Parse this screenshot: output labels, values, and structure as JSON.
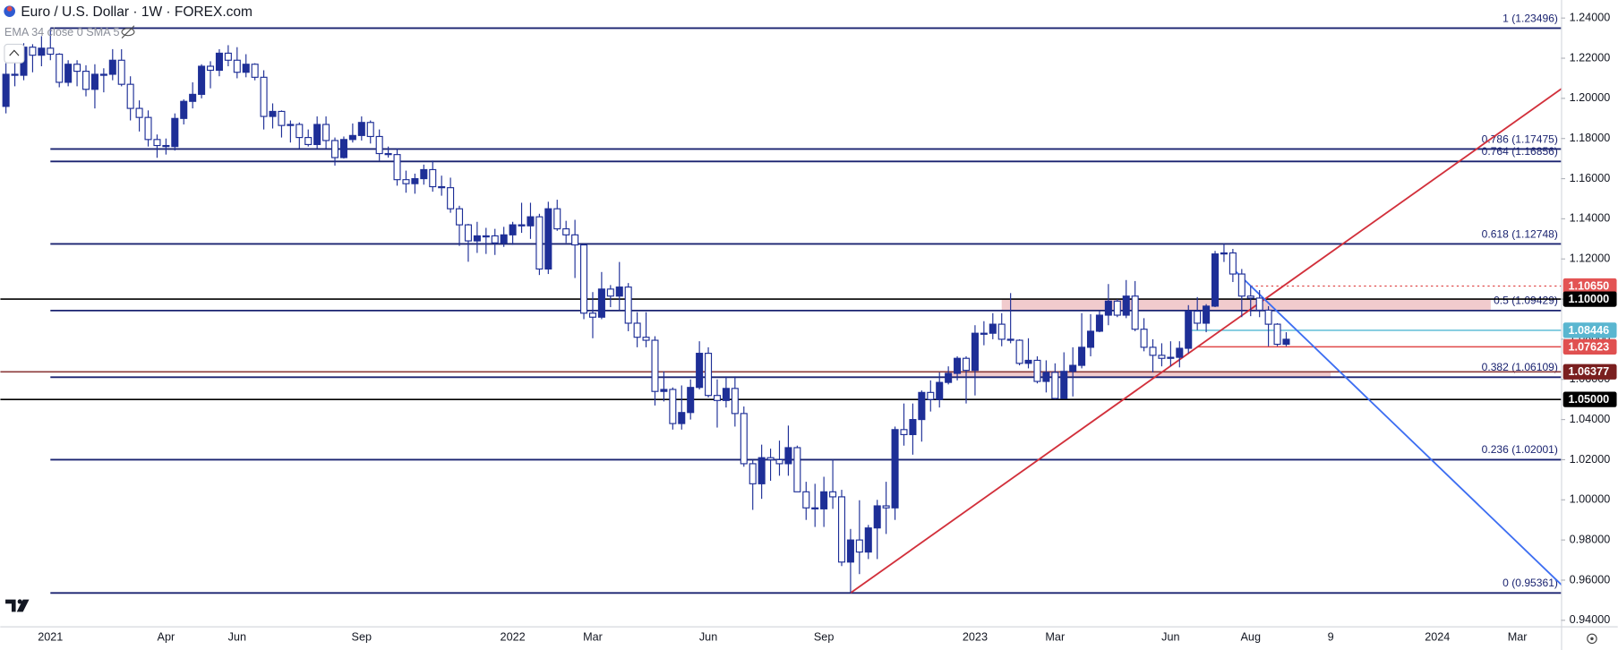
{
  "chart_data": {
    "type": "candlestick",
    "title": "Euro / U.S. Dollar · 1W · FOREX.com",
    "indicator": "EMA 34 close 0 SMA 5",
    "up_color": "#1e2f97",
    "down_color": "#ffffff",
    "outline_color": "#1e2f97",
    "categories": [
      null,
      null,
      null,
      null,
      null,
      "2021",
      null,
      null,
      null,
      null,
      null,
      null,
      null,
      null,
      null,
      null,
      null,
      null,
      "Apr",
      null,
      null,
      null,
      null,
      null,
      null,
      null,
      "Jun",
      null,
      null,
      null,
      null,
      null,
      null,
      null,
      null,
      null,
      null,
      null,
      null,
      null,
      "Sep",
      null,
      null,
      null,
      null,
      null,
      null,
      null,
      null,
      null,
      null,
      null,
      null,
      null,
      null,
      null,
      null,
      "2022",
      null,
      null,
      null,
      null,
      null,
      null,
      null,
      null,
      "Mar",
      null,
      null,
      null,
      null,
      null,
      null,
      null,
      null,
      null,
      null,
      null,
      null,
      "Jun",
      null,
      null,
      null,
      null,
      null,
      null,
      null,
      null,
      null,
      null,
      null,
      null,
      "Sep",
      null,
      null,
      null,
      null,
      null,
      null,
      null,
      null,
      null,
      null,
      null,
      null,
      null,
      null,
      null,
      null,
      "2023",
      null,
      null,
      null,
      null,
      null,
      null,
      null,
      null,
      "Mar",
      null,
      null,
      null,
      null,
      null,
      null,
      null,
      null,
      null,
      null,
      null,
      null,
      "Jun",
      null,
      null,
      null,
      null,
      null,
      null,
      null,
      null,
      "Aug",
      null,
      null,
      null,
      null,
      null,
      null,
      null,
      null,
      "9",
      null,
      null,
      null,
      null,
      null,
      null,
      null,
      null,
      null,
      null,
      null,
      "2024",
      null,
      null,
      null,
      null,
      null,
      null,
      null,
      null,
      "Mar",
      null,
      null,
      null,
      null
    ],
    "open": [
      1.196,
      1.212,
      1.2115,
      1.2255,
      1.2215,
      1.225,
      1.222,
      1.208,
      1.217,
      1.2135,
      1.2045,
      1.212,
      1.212,
      1.219,
      1.207,
      1.195,
      1.1905,
      1.1795,
      1.1765,
      1.176,
      1.19,
      1.1985,
      1.202,
      1.216,
      1.214,
      1.2225,
      1.219,
      1.213,
      1.217,
      1.2105,
      1.191,
      1.1935,
      1.1865,
      1.187,
      1.1805,
      1.177,
      1.187,
      1.179,
      1.1705,
      1.1795,
      1.1815,
      1.188,
      1.181,
      1.1725,
      1.172,
      1.1595,
      1.1575,
      1.16,
      1.1645,
      1.156,
      1.1555,
      1.145,
      1.137,
      1.129,
      1.1315,
      1.1315,
      1.128,
      1.132,
      1.137,
      1.1365,
      1.141,
      1.115,
      1.145,
      1.135,
      1.132,
      1.127,
      1.093,
      1.091,
      1.105,
      1.1015,
      1.106,
      1.088,
      1.081,
      1.0795,
      1.054,
      1.055,
      1.038,
      1.0435,
      1.056,
      1.073,
      1.052,
      1.0495,
      1.0555,
      1.043,
      1.018,
      1.008,
      1.021,
      1.02,
      1.018,
      1.026,
      1.004,
      0.996,
      0.9955,
      1.004,
      1.0015,
      0.969,
      0.98,
      0.974,
      0.986,
      0.997,
      0.996,
      1.035,
      1.0325,
      1.04,
      1.0535,
      1.05,
      1.0585,
      1.063,
      1.0705,
      1.0645,
      1.083,
      1.083,
      1.0875,
      1.08,
      1.0795,
      1.068,
      1.0695,
      1.059,
      1.0635,
      1.0505,
      1.064,
      1.067,
      1.076,
      1.084,
      1.092,
      1.099,
      1.092,
      1.1015,
      1.085,
      1.076,
      1.072,
      1.0705,
      1.071,
      1.0755,
      1.094,
      1.088,
      1.0965,
      1.1225,
      1.123,
      1.1125,
      1.1015,
      1.1005,
      1.0945,
      1.0875,
      1.0775,
      null,
      null,
      null,
      null,
      null,
      null,
      null,
      null,
      null,
      null,
      null,
      null,
      null,
      null,
      null,
      null,
      null,
      null,
      null,
      null,
      null,
      null,
      null,
      null,
      null,
      null,
      null,
      null,
      null,
      null
    ],
    "high": [
      1.2175,
      1.218,
      1.2275,
      1.227,
      1.231,
      1.2349,
      1.2225,
      1.219,
      1.219,
      1.2165,
      1.217,
      1.215,
      1.2245,
      1.2245,
      1.211,
      1.199,
      1.194,
      1.182,
      1.18,
      1.1925,
      1.1995,
      1.208,
      1.217,
      1.2185,
      1.2245,
      1.2265,
      1.2255,
      1.222,
      1.2175,
      1.214,
      1.1975,
      1.194,
      1.189,
      1.188,
      1.1845,
      1.191,
      1.191,
      1.1805,
      1.181,
      1.1875,
      1.191,
      1.189,
      1.1845,
      1.176,
      1.175,
      1.164,
      1.1625,
      1.167,
      1.169,
      1.1615,
      1.1605,
      1.1465,
      1.1375,
      1.1385,
      1.1355,
      1.135,
      1.136,
      1.1385,
      1.148,
      1.148,
      1.1425,
      1.1485,
      1.1495,
      1.139,
      1.1395,
      1.1275,
      1.1035,
      1.1135,
      1.107,
      1.1185,
      1.108,
      1.0935,
      1.0935,
      1.0815,
      1.064,
      1.056,
      1.057,
      1.06,
      1.079,
      1.076,
      1.06,
      1.0615,
      1.0615,
      1.0465,
      1.02,
      1.0275,
      1.0255,
      1.0295,
      1.037,
      1.027,
      1.009,
      1.008,
      1.0115,
      1.02,
      1.005,
      0.9855,
      0.9998,
      0.9875,
      1.0,
      1.009,
      1.0365,
      1.048,
      1.048,
      1.0545,
      1.0595,
      1.0635,
      1.0665,
      1.0715,
      1.0715,
      1.087,
      1.089,
      1.093,
      1.093,
      1.103,
      1.08,
      1.0805,
      1.0715,
      1.0695,
      1.068,
      1.0735,
      1.076,
      1.093,
      1.0925,
      1.094,
      1.1075,
      1.1,
      1.1095,
      1.109,
      1.0905,
      1.08,
      1.078,
      1.079,
      1.079,
      1.097,
      1.101,
      1.0975,
      1.124,
      1.1276,
      1.125,
      1.115,
      1.1065,
      1.1045,
      1.0965,
      1.088,
      1.0835,
      null,
      null,
      null,
      null,
      null,
      null,
      null,
      null,
      null,
      null,
      null,
      null,
      null,
      null,
      null,
      null,
      null,
      null,
      null,
      null,
      null,
      null,
      null,
      null,
      null,
      null,
      null,
      null,
      null,
      null
    ],
    "low": [
      1.1925,
      1.206,
      1.209,
      1.213,
      1.216,
      1.219,
      1.2055,
      1.206,
      1.206,
      1.201,
      1.195,
      1.203,
      1.209,
      1.206,
      1.189,
      1.1835,
      1.176,
      1.1704,
      1.172,
      1.174,
      1.187,
      1.195,
      1.2,
      1.205,
      1.211,
      1.216,
      1.21,
      1.2105,
      1.209,
      1.1845,
      1.185,
      1.1805,
      1.178,
      1.175,
      1.176,
      1.175,
      1.175,
      1.1665,
      1.17,
      1.178,
      1.179,
      1.1775,
      1.169,
      1.1705,
      1.1565,
      1.153,
      1.1525,
      1.157,
      1.1535,
      1.1515,
      1.143,
      1.1265,
      1.1186,
      1.123,
      1.1225,
      1.122,
      1.126,
      1.127,
      1.133,
      1.13,
      1.112,
      1.1125,
      1.134,
      1.128,
      1.1105,
      1.09,
      1.0805,
      1.09,
      1.096,
      1.0945,
      1.084,
      1.076,
      1.076,
      1.047,
      1.049,
      1.035,
      1.035,
      1.04,
      1.055,
      1.051,
      1.036,
      1.046,
      1.0365,
      1.0165,
      0.995,
      1.0005,
      1.0095,
      1.012,
      1.012,
      1.004,
      0.99,
      0.9865,
      0.9865,
      0.9955,
      0.967,
      0.9536,
      0.963,
      0.9705,
      0.9705,
      0.983,
      0.99,
      1.027,
      1.0225,
      1.029,
      1.044,
      1.046,
      1.0575,
      1.0595,
      1.048,
      1.052,
      1.077,
      1.08,
      1.0765,
      1.078,
      1.067,
      1.0655,
      1.058,
      1.0535,
      1.05,
      1.0505,
      1.0515,
      1.0655,
      1.0715,
      1.0835,
      1.087,
      1.091,
      1.0905,
      1.084,
      1.074,
      1.0635,
      1.0665,
      1.0665,
      1.066,
      1.073,
      1.0845,
      1.0835,
      1.096,
      1.1185,
      1.1085,
      1.091,
      1.0915,
      1.091,
      1.0765,
      1.0765,
      1.0765,
      null,
      null,
      null,
      null,
      null,
      null,
      null,
      null,
      null,
      null,
      null,
      null,
      null,
      null,
      null,
      null,
      null,
      null,
      null,
      null,
      null,
      null,
      null,
      null,
      null,
      null,
      null,
      null,
      null,
      null
    ],
    "close": [
      1.212,
      1.2115,
      1.2255,
      1.2215,
      1.225,
      1.222,
      1.208,
      1.217,
      1.2135,
      1.2045,
      1.212,
      1.212,
      1.219,
      1.207,
      1.195,
      1.1905,
      1.1795,
      1.1765,
      1.176,
      1.19,
      1.1985,
      1.202,
      1.216,
      1.214,
      1.2225,
      1.219,
      1.213,
      1.217,
      1.2105,
      1.191,
      1.1935,
      1.1865,
      1.187,
      1.1805,
      1.177,
      1.187,
      1.179,
      1.1705,
      1.1795,
      1.1815,
      1.188,
      1.181,
      1.1725,
      1.172,
      1.1595,
      1.1575,
      1.16,
      1.1645,
      1.156,
      1.1555,
      1.145,
      1.137,
      1.129,
      1.1315,
      1.1315,
      1.128,
      1.132,
      1.137,
      1.1365,
      1.141,
      1.115,
      1.145,
      1.135,
      1.132,
      1.127,
      1.093,
      1.091,
      1.105,
      1.1015,
      1.106,
      1.088,
      1.081,
      1.0795,
      1.054,
      1.055,
      1.038,
      1.0435,
      1.056,
      1.073,
      1.052,
      1.0495,
      1.0555,
      1.043,
      1.018,
      1.008,
      1.021,
      1.02,
      1.018,
      1.026,
      1.004,
      0.996,
      0.9955,
      1.004,
      1.0015,
      0.969,
      0.98,
      0.974,
      0.986,
      0.997,
      0.996,
      1.035,
      1.0325,
      1.04,
      1.0535,
      1.05,
      1.0585,
      1.063,
      1.0705,
      1.0645,
      1.083,
      1.083,
      1.0875,
      1.08,
      1.0795,
      1.068,
      1.0695,
      1.059,
      1.0635,
      1.0505,
      1.064,
      1.067,
      1.076,
      1.084,
      1.092,
      1.099,
      1.092,
      1.1015,
      1.085,
      1.076,
      1.072,
      1.0705,
      1.071,
      1.0755,
      1.094,
      1.088,
      1.0965,
      1.1225,
      1.123,
      1.1125,
      1.1015,
      1.1005,
      1.0945,
      1.0875,
      1.0775,
      1.08,
      null,
      null,
      null,
      null,
      null,
      null,
      null,
      null,
      null,
      null,
      null,
      null,
      null,
      null,
      null,
      null,
      null,
      null,
      null,
      null,
      null,
      null,
      null,
      null,
      null,
      null,
      null,
      null,
      null,
      null
    ],
    "ylim": [
      0.937,
      1.249
    ],
    "yticks": [
      {
        "value": 0.94,
        "label": "0.94000"
      },
      {
        "value": 0.96,
        "label": "0.96000"
      },
      {
        "value": 0.98,
        "label": "0.98000"
      },
      {
        "value": 1.0,
        "label": "1.00000"
      },
      {
        "value": 1.02,
        "label": "1.02000"
      },
      {
        "value": 1.04,
        "label": "1.04000"
      },
      {
        "value": 1.06,
        "label": "1.06000"
      },
      {
        "value": 1.08,
        "label": "1.08000"
      },
      {
        "value": 1.1,
        "label": "1.10000"
      },
      {
        "value": 1.12,
        "label": "1.12000"
      },
      {
        "value": 1.14,
        "label": "1.14000"
      },
      {
        "value": 1.16,
        "label": "1.16000"
      },
      {
        "value": 1.18,
        "label": "1.18000"
      },
      {
        "value": 1.2,
        "label": "1.20000"
      },
      {
        "value": 1.22,
        "label": "1.22000"
      },
      {
        "value": 1.24,
        "label": "1.24000"
      }
    ],
    "fib": {
      "start": 5,
      "color": "#1a2370",
      "levels": [
        {
          "value": 1.23496,
          "label": "1 (1.23496)"
        },
        {
          "value": 1.17475,
          "label": "0.786 (1.17475)"
        },
        {
          "value": 1.16856,
          "label": "0.764 (1.16856)"
        },
        {
          "value": 1.12748,
          "label": "0.618 (1.12748)"
        },
        {
          "value": 1.09429,
          "label": "0.5 (1.09429)"
        },
        {
          "value": 1.06109,
          "label": "0.382 (1.06109)"
        },
        {
          "value": 1.02001,
          "label": "0.236 (1.02001)"
        },
        {
          "value": 0.95361,
          "label": "0 (0.95361)"
        }
      ]
    },
    "zones": [
      {
        "range": [
          1.09429,
          1.1
        ],
        "span": [
          112,
          167
        ],
        "color": "rgba(225,140,145,0.45)"
      },
      {
        "range": [
          1.06109,
          1.06377
        ],
        "span": [
          106,
          149
        ],
        "color": "rgba(225,140,145,0.45)"
      }
    ],
    "hlines": [
      {
        "value": 1.1,
        "start": 0,
        "color": "#000000",
        "dash": false
      },
      {
        "value": 1.05,
        "start": 0,
        "color": "#000000",
        "dash": false
      },
      {
        "value": 1.06377,
        "start": 0,
        "color": "#8b3a3a",
        "dash": false
      },
      {
        "value": 1.1065,
        "start": 140,
        "color": "#e04848",
        "dash": true
      },
      {
        "value": 1.08446,
        "start": 133,
        "color": "#6cc3da",
        "dash": false
      },
      {
        "value": 1.07623,
        "start": 134,
        "color": "#e04848",
        "dash": false
      }
    ],
    "trendlines": [
      {
        "color": "#d2303b",
        "points": [
          [
            95,
            0.95361
          ],
          [
            175,
            1.2049
          ]
        ]
      },
      {
        "color": "#3d6ef2",
        "points": [
          [
            138,
            1.1151
          ],
          [
            175,
            0.9575
          ]
        ]
      }
    ],
    "price_tags": [
      {
        "value": 1.1065,
        "label": "1.10650",
        "color": "#e35454"
      },
      {
        "value": 1.1,
        "label": "1.10000",
        "color": "#000000"
      },
      {
        "value": 1.08446,
        "label": "1.08446",
        "color": "#5ab6d0"
      },
      {
        "value": 1.07623,
        "label": "1.07623",
        "color": "#e05050"
      },
      {
        "value": 1.06377,
        "label": "1.06377",
        "color": "#7a1f1f"
      },
      {
        "value": 1.05,
        "label": "1.05000",
        "color": "#000000"
      }
    ]
  }
}
